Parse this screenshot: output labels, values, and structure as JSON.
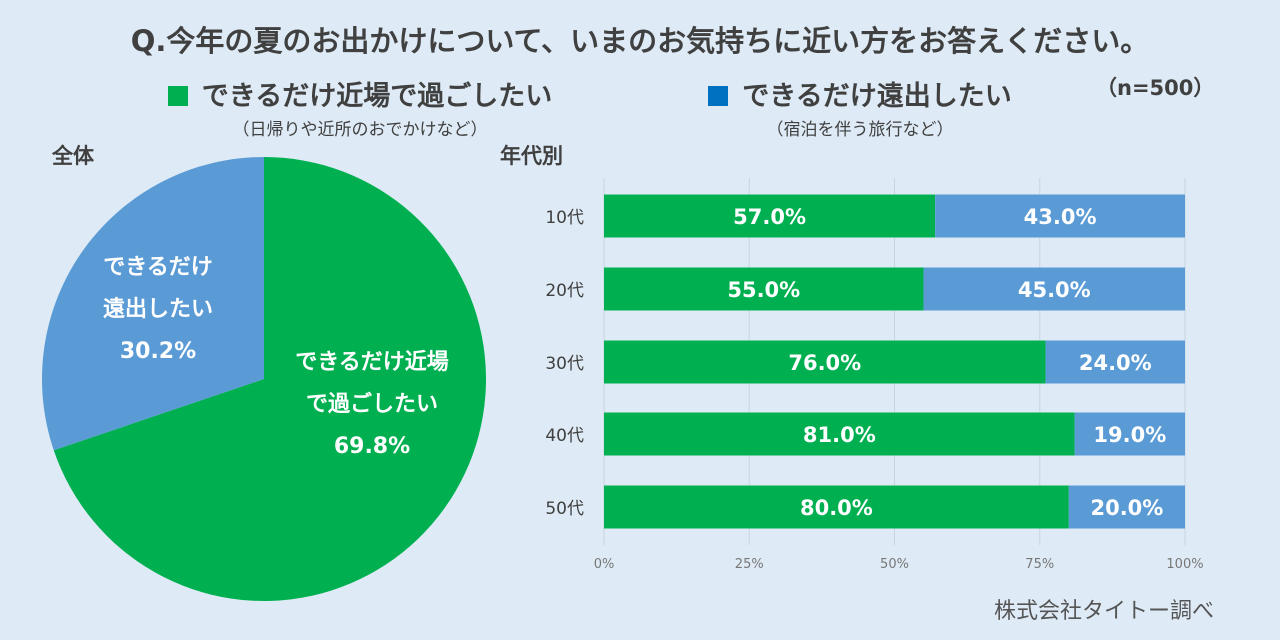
{
  "title": "Q.今年の夏のお出かけについて、いまのお気持ちに近い方をお答えください。",
  "sample_size": "（n=500）",
  "legend": [
    {
      "label": "できるだけ近場で過ごしたい",
      "sub": "（日帰りや近所のおでかけなど）",
      "color": "#00b050"
    },
    {
      "label": "できるだけ遠出したい",
      "sub": "（宿泊を伴う旅行など）",
      "color": "#0070c0"
    }
  ],
  "pie_section_label": "全体",
  "bar_section_label": "年代別",
  "pie_labels": {
    "near_line1": "できるだけ近場",
    "near_line2": "で過ごしたい",
    "near_pct": "69.8%",
    "far_line1": "できるだけ",
    "far_line2": "遠出したい",
    "far_pct": "30.2%"
  },
  "source": "株式会社タイトー調べ",
  "chart_data": [
    {
      "type": "pie",
      "title": "全体",
      "slices": [
        {
          "label": "できるだけ近場で過ごしたい",
          "value": 69.8,
          "color": "#00b050"
        },
        {
          "label": "できるだけ遠出したい",
          "value": 30.2,
          "color": "#5b9bd5"
        }
      ]
    },
    {
      "type": "bar",
      "orientation": "horizontal",
      "stacked": true,
      "title": "年代別",
      "categories": [
        "10代",
        "20代",
        "30代",
        "40代",
        "50代"
      ],
      "series": [
        {
          "name": "できるだけ近場で過ごしたい",
          "values": [
            57.0,
            55.0,
            76.0,
            81.0,
            80.0
          ],
          "labels": [
            "57.0%",
            "55.0%",
            "76.0%",
            "81.0%",
            "80.0%"
          ],
          "color": "#00b050"
        },
        {
          "name": "できるだけ遠出したい",
          "values": [
            43.0,
            45.0,
            24.0,
            19.0,
            20.0
          ],
          "labels": [
            "43.0%",
            "45.0%",
            "24.0%",
            "19.0%",
            "20.0%"
          ],
          "color": "#5b9bd5"
        }
      ],
      "xlim": [
        0,
        100
      ],
      "x_ticks": [
        "0%",
        "25%",
        "50%",
        "75%",
        "100%"
      ],
      "grid": true
    }
  ]
}
